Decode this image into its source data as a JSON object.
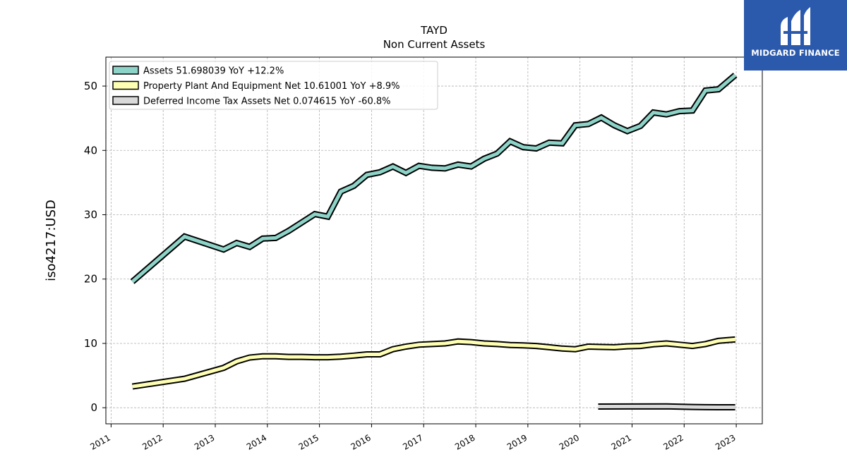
{
  "chart_data": {
    "type": "line",
    "title": "TAYD",
    "subtitle": "Non Current  Assets",
    "xlabel": "",
    "ylabel": "iso4217:USD",
    "xlim": [
      2010.9,
      2023.5
    ],
    "ylim": [
      -2.5,
      54.5
    ],
    "x_ticks": [
      "2011",
      "2012",
      "2013",
      "2014",
      "2015",
      "2016",
      "2017",
      "2018",
      "2019",
      "2020",
      "2021",
      "2022",
      "2023"
    ],
    "y_ticks": [
      0,
      10,
      20,
      30,
      40,
      50
    ],
    "grid": true,
    "legend_position": "top-left",
    "series": [
      {
        "name": "Assets  51.698039 YoY +12.2%",
        "color": "#8dd3c7",
        "x": [
          2011.41,
          2012.41,
          2013.16,
          2013.41,
          2013.66,
          2013.91,
          2014.16,
          2014.41,
          2014.66,
          2014.91,
          2015.16,
          2015.41,
          2015.66,
          2015.91,
          2016.16,
          2016.41,
          2016.66,
          2016.91,
          2017.16,
          2017.41,
          2017.66,
          2017.91,
          2018.16,
          2018.41,
          2018.66,
          2018.91,
          2019.16,
          2019.41,
          2019.66,
          2019.91,
          2020.16,
          2020.41,
          2020.66,
          2020.91,
          2021.16,
          2021.41,
          2021.66,
          2021.91,
          2022.16,
          2022.41,
          2022.66,
          2022.98
        ],
        "y": [
          19.6,
          26.6,
          24.6,
          25.6,
          25.0,
          26.3,
          26.4,
          27.5,
          28.8,
          30.1,
          29.7,
          33.6,
          34.5,
          36.2,
          36.6,
          37.5,
          36.5,
          37.6,
          37.3,
          37.2,
          37.8,
          37.5,
          38.7,
          39.5,
          41.4,
          40.5,
          40.3,
          41.2,
          41.1,
          43.9,
          44.1,
          45.1,
          43.9,
          43.0,
          43.8,
          45.9,
          45.6,
          46.1,
          46.2,
          49.3,
          49.5,
          51.7
        ]
      },
      {
        "name": "Property Plant And Equipment Net  10.61001 YoY +8.9%",
        "color": "#ffffb3",
        "x": [
          2011.41,
          2012.41,
          2013.16,
          2013.41,
          2013.66,
          2013.91,
          2014.16,
          2014.41,
          2014.66,
          2014.91,
          2015.16,
          2015.41,
          2015.66,
          2015.91,
          2016.16,
          2016.41,
          2016.66,
          2016.91,
          2017.16,
          2017.41,
          2017.66,
          2017.91,
          2018.16,
          2018.41,
          2018.66,
          2018.91,
          2019.16,
          2019.41,
          2019.66,
          2019.91,
          2020.16,
          2020.41,
          2020.66,
          2020.91,
          2021.16,
          2021.41,
          2021.66,
          2021.91,
          2022.16,
          2022.41,
          2022.66,
          2022.98
        ],
        "y": [
          3.3,
          4.5,
          6.2,
          7.2,
          7.8,
          8.0,
          8.0,
          7.9,
          7.9,
          7.85,
          7.85,
          7.95,
          8.1,
          8.3,
          8.3,
          9.1,
          9.5,
          9.8,
          9.9,
          10.0,
          10.3,
          10.2,
          10.0,
          9.9,
          9.75,
          9.7,
          9.6,
          9.4,
          9.2,
          9.1,
          9.5,
          9.45,
          9.4,
          9.55,
          9.6,
          9.85,
          10.0,
          9.8,
          9.6,
          9.9,
          10.4,
          10.61
        ]
      },
      {
        "name": "Deferred Income Tax Assets Net  0.074615 YoY -60.8%",
        "color": "#d9d9d9",
        "x": [
          2020.35,
          2021.66,
          2022.16,
          2022.41,
          2022.98
        ],
        "y": [
          0.19,
          0.22,
          0.12,
          0.09,
          0.074615
        ]
      }
    ]
  },
  "logo": {
    "text": "MIDGARD FINANCE",
    "background": "#2b5aad"
  }
}
